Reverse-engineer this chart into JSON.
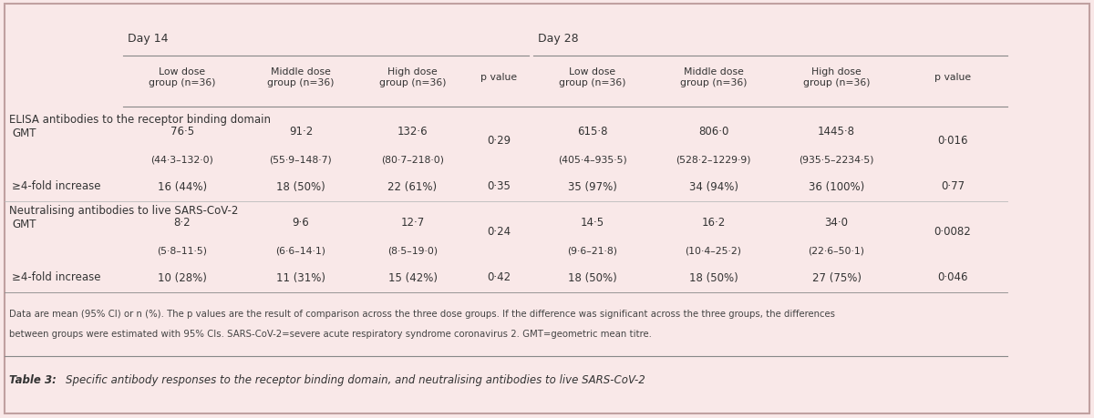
{
  "bg_color": "#f9e8e8",
  "border_color": "#c0a0a0",
  "title_caption": "Table 3: Specific antibody responses to the receptor binding domain, and neutralising antibodies to live SARS-CoV-2",
  "footnote": "Data are mean (95% CI) or n (%). The p values are the result of comparison across the three dose groups. If the difference was significant across the three groups, the differences\nbetween groups were estimated with 95% CIs. SARS-CoV-2=severe acute respiratory syndrome coronavirus 2. GMT=geometric mean titre.",
  "day14_label": "Day 14",
  "day28_label": "Day 28",
  "col_headers": [
    "Low dose\ngroup (n=36)",
    "Middle dose\ngroup (n=36)",
    "High dose\ngroup (n=36)",
    "p value",
    "Low dose\ngroup (n=36)",
    "Middle dose\ngroup (n=36)",
    "High dose\ngroup (n=36)",
    "p value"
  ],
  "section1_header": "ELISA antibodies to the receptor binding domain",
  "section2_header": "Neutralising antibodies to live SARS-CoV-2",
  "rows": [
    {
      "label": "GMT",
      "values": [
        "76·5\n(44·3–132·0)",
        "91·2\n(55·9–148·7)",
        "132·6\n(80·7–218·0)",
        "0·29",
        "615·8\n(405·4–935·5)",
        "806·0\n(528·2–1229·9)",
        "1445·8\n(935·5–2234·5)",
        "0·016"
      ],
      "section": 1
    },
    {
      "label": "≥4-fold increase",
      "values": [
        "16 (44%)",
        "18 (50%)",
        "22 (61%)",
        "0·35",
        "35 (97%)",
        "34 (94%)",
        "36 (100%)",
        "0·77"
      ],
      "section": 1
    },
    {
      "label": "GMT",
      "values": [
        "8·2\n(5·8–11·5)",
        "9·6\n(6·6–14·1)",
        "12·7\n(8·5–19·0)",
        "0·24",
        "14·5\n(9·6–21·8)",
        "16·2\n(10·4–25·2)",
        "34·0\n(22·6–50·1)",
        "0·0082"
      ],
      "section": 2
    },
    {
      "label": "≥4-fold increase",
      "values": [
        "10 (28%)",
        "11 (31%)",
        "15 (42%)",
        "0·42",
        "18 (50%)",
        "18 (50%)",
        "27 (75%)",
        "0·046"
      ],
      "section": 2
    }
  ]
}
